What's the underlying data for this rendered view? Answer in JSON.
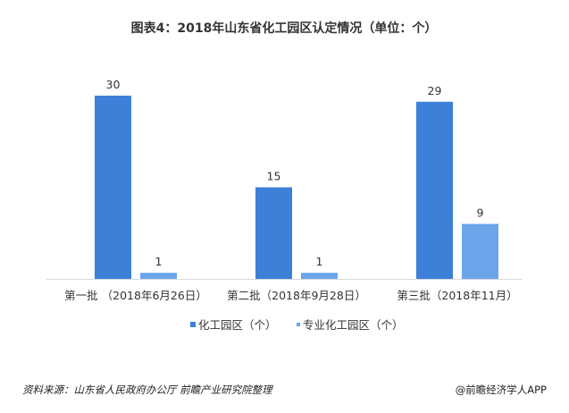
{
  "chart_data": {
    "type": "bar",
    "title": "图表4：2018年山东省化工园区认定情况（单位：个）",
    "categories": [
      "第一批 （2018年6月26日）",
      "第二批（2018年9月28日）",
      "第三批（2018年11月）"
    ],
    "series": [
      {
        "name": "化工园区（个）",
        "values": [
          30,
          15,
          29
        ],
        "color": "#3c80d8"
      },
      {
        "name": "专业化工园区（个）",
        "values": [
          1,
          1,
          9
        ],
        "color": "#6ca5ea"
      }
    ],
    "xlabel": "",
    "ylabel": "",
    "ylim": [
      0,
      30
    ],
    "grid": false,
    "legend": "bottom",
    "data_labels": true
  },
  "footer": {
    "source": "资料来源：山东省人民政府办公厅  前瞻产业研究院整理",
    "credit": "@前瞻经济学人APP"
  }
}
